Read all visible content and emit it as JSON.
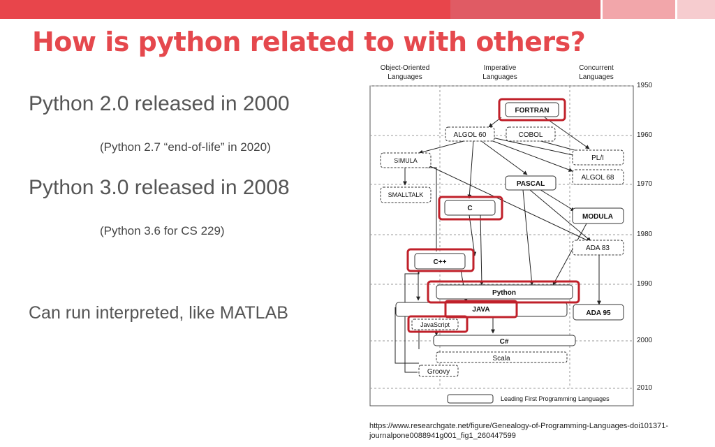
{
  "colors": {
    "accent": "#e5484d",
    "bar_main": "#e8454b",
    "bar_light1": "#e05b64",
    "bar_light2": "#f2a6aa",
    "bar_light3": "#f6cccf",
    "highlight": "#c0202a"
  },
  "slide": {
    "title": "How is python related to with others?",
    "bullets": [
      "Python 2.0 released in 2000",
      "(Python 2.7 “end-of-life” in 2020)",
      "Python 3.0 released in 2008",
      "(Python 3.6 for CS 229)",
      "Can run interpreted, like MATLAB"
    ],
    "citation": "https://www.researchgate.net/figure/Genealogy-of-Programming-Languages-doi101371-journalpone0088941g001_fig1_260447599"
  },
  "diagram": {
    "columns": [
      "Object-Oriented Languages",
      "Imperative Languages",
      "Concurrent Languages"
    ],
    "years": [
      "1950",
      "1960",
      "1970",
      "1980",
      "1990",
      "2000",
      "2010"
    ],
    "nodes": {
      "fortran": "FORTRAN",
      "algol60": "ALGOL 60",
      "cobol": "COBOL",
      "simula": "SIMULA",
      "pli": "PL/I",
      "algol68": "ALGOL 68",
      "pascal": "PASCAL",
      "smalltalk": "SMALLTALK",
      "c": "C",
      "modula": "MODULA",
      "ada83": "ADA 83",
      "cpp": "C++",
      "python": "Python",
      "java": "JAVA",
      "ada95": "ADA 95",
      "javascript": "JavaScript",
      "csharp": "C#",
      "scala": "Scala",
      "groovy": "Groovy"
    },
    "legend": "Leading First Programming Languages"
  }
}
